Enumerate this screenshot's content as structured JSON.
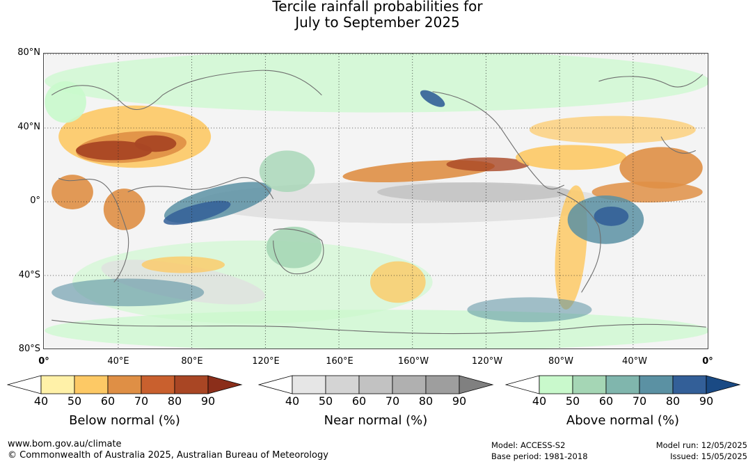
{
  "title": {
    "line1": "Tercile rainfall probabilities for",
    "line2": "July to September 2025"
  },
  "axes": {
    "lat_labels": [
      "80°N",
      "40°N",
      "0°",
      "40°S",
      "80°S"
    ],
    "lon_labels": [
      "0°",
      "40°E",
      "80°E",
      "120°E",
      "160°E",
      "160°W",
      "120°W",
      "80°W",
      "40°W",
      "0°"
    ]
  },
  "legends": [
    {
      "caption": "Below normal (%)",
      "ticks": [
        "40",
        "50",
        "60",
        "70",
        "80",
        "90"
      ],
      "colors": [
        "#fff1a8",
        "#fdc965",
        "#df8f45",
        "#c9602e",
        "#a94624",
        "#8b2e1a"
      ]
    },
    {
      "caption": "Near normal (%)",
      "ticks": [
        "40",
        "50",
        "60",
        "70",
        "80",
        "90"
      ],
      "colors": [
        "#e6e6e6",
        "#d4d4d4",
        "#c2c2c2",
        "#b0b0b0",
        "#9e9e9e",
        "#808080"
      ]
    },
    {
      "caption": "Above normal (%)",
      "ticks": [
        "40",
        "50",
        "60",
        "70",
        "80",
        "90"
      ],
      "colors": [
        "#c9f9cc",
        "#a5d6b5",
        "#80b6ad",
        "#5b91a3",
        "#335f98",
        "#1a4a84"
      ]
    }
  ],
  "footer": {
    "url": "www.bom.gov.au/climate",
    "copyright": "© Commonwealth of Australia 2025, Australian Bureau of Meteorology",
    "model": "Model: ACCESS-S2",
    "base_period": "Base period: 1981-2018",
    "model_run": "Model run: 12/05/2025",
    "issued": "Issued: 15/05/2025"
  },
  "colors": {
    "below_strong": "#a94624",
    "below_mid": "#df8f45",
    "below_light": "#fdc965",
    "near_light": "#e0e0e0",
    "near_mid": "#c4c4c4",
    "above_light": "#c9f9cc",
    "above_mid": "#a5d6b5",
    "above_strong": "#5b91a3",
    "above_deep": "#335f98",
    "coast": "#6e6e6e"
  }
}
